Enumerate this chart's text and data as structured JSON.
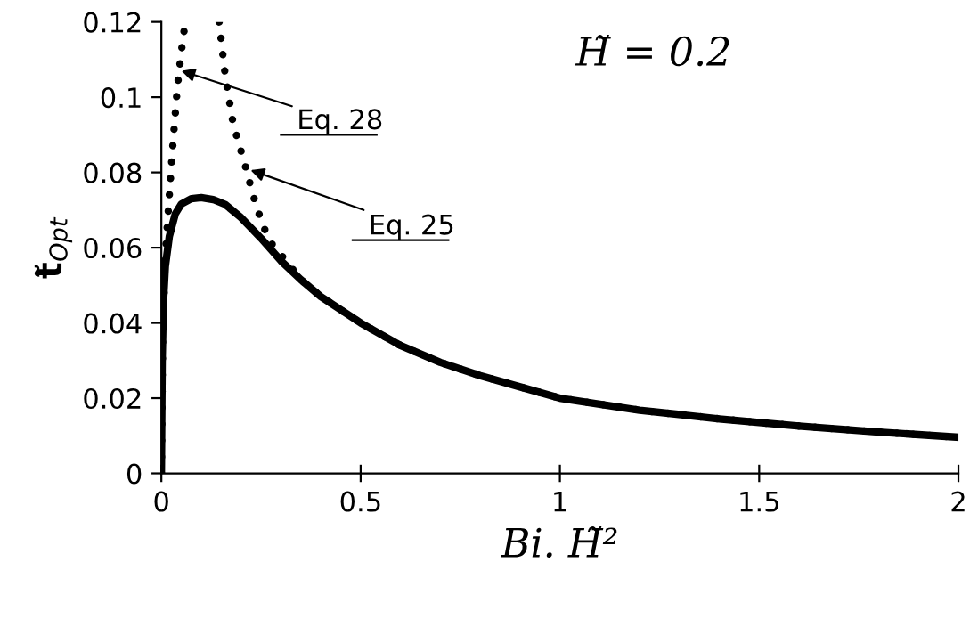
{
  "chart_data": {
    "type": "line",
    "title": "H̃ = 0.2",
    "xlabel": "Bi. H̃²",
    "ylabel": "t̃$_{Opt}$",
    "xlim": [
      0,
      2
    ],
    "ylim": [
      0,
      0.12
    ],
    "xticks": [
      0,
      0.5,
      1,
      1.5,
      2
    ],
    "yticks": [
      0,
      0.02,
      0.04,
      0.06,
      0.08,
      0.1,
      0.12
    ],
    "grid": false,
    "legend": false,
    "series": [
      {
        "color": "#000000",
        "line_style": "solid",
        "x": [
          0,
          0.002,
          0.005,
          0.01,
          0.02,
          0.035,
          0.05,
          0.075,
          0.1,
          0.13,
          0.16,
          0.2,
          0.25,
          0.3,
          0.35,
          0.4,
          0.5,
          0.6,
          0.7,
          0.8,
          0.9,
          1,
          1.2,
          1.4,
          1.6,
          1.8,
          2
        ],
        "values": [
          0,
          0.03,
          0.045,
          0.055,
          0.063,
          0.069,
          0.0716,
          0.073,
          0.0733,
          0.0728,
          0.0715,
          0.068,
          0.0625,
          0.0565,
          0.0515,
          0.047,
          0.04,
          0.034,
          0.0295,
          0.026,
          0.023,
          0.02,
          0.0168,
          0.0145,
          0.0126,
          0.011,
          0.0096
        ]
      },
      {
        "color": "#000000",
        "line_style": "dotted",
        "x": [
          0,
          0.003,
          0.01,
          0.02,
          0.03,
          0.04,
          0.05,
          0.06
        ],
        "values": [
          0,
          0.035,
          0.058,
          0.074,
          0.089,
          0.1025,
          0.112,
          0.12
        ]
      },
      {
        "color": "#000000",
        "line_style": "dotted",
        "x": [
          0.145,
          0.16,
          0.18,
          0.21,
          0.23,
          0.254,
          0.28,
          0.313,
          0.35,
          0.4,
          0.5,
          0.6,
          0.7,
          0.8,
          0.9,
          1,
          1.2,
          1.4,
          1.6,
          1.8,
          2
        ],
        "values": [
          0.12,
          0.106,
          0.093,
          0.082,
          0.074,
          0.066,
          0.0605,
          0.0565,
          0.0515,
          0.047,
          0.04,
          0.034,
          0.0295,
          0.026,
          0.023,
          0.02,
          0.0168,
          0.0145,
          0.0126,
          0.011,
          0.0096
        ]
      }
    ],
    "annotations": [
      {
        "text": "Eq. 28",
        "x": 0.05,
        "y": 0.107
      },
      {
        "text": "Eq. 25",
        "x": 0.224,
        "y": 0.0806
      }
    ]
  }
}
